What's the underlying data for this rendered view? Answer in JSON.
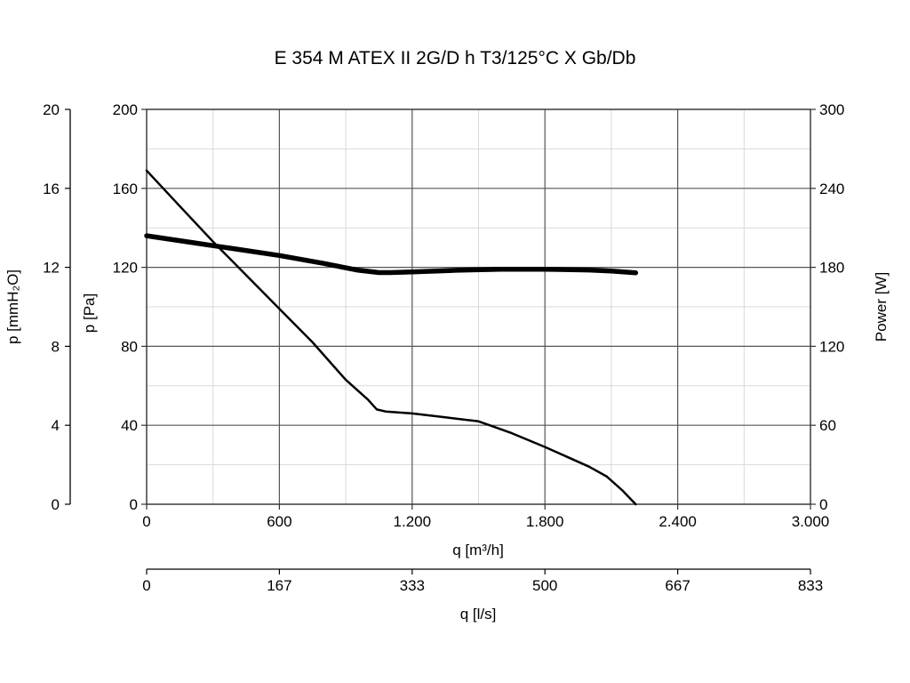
{
  "chart_data": {
    "type": "line",
    "title": "E 354 M ATEX II 2G/D h T3/125°C X Gb/Db",
    "x_axis": {
      "label": "q [m³/h]",
      "range": [
        0,
        3000
      ],
      "ticks": [
        0,
        600,
        1200,
        1800,
        2400,
        3000
      ],
      "tick_labels": [
        "0",
        "600",
        "1.200",
        "1.800",
        "2.400",
        "3.000"
      ]
    },
    "x2_axis": {
      "label": "q [l/s]",
      "tick_labels": [
        "0",
        "167",
        "333",
        "500",
        "667",
        "833"
      ]
    },
    "y_axis": {
      "label": "p [Pa]",
      "range": [
        0,
        200
      ],
      "ticks": [
        0,
        40,
        80,
        120,
        160,
        200
      ],
      "tick_labels": [
        "0",
        "40",
        "80",
        "120",
        "160",
        "200"
      ]
    },
    "y2_axis": {
      "label": "p [mmH₂O]",
      "tick_labels": [
        "0",
        "4",
        "8",
        "12",
        "16",
        "20"
      ]
    },
    "y3_axis": {
      "label": "Power [W]",
      "range": [
        0,
        300
      ],
      "ticks": [
        0,
        60,
        120,
        180,
        240,
        300
      ],
      "tick_labels": [
        "0",
        "60",
        "120",
        "180",
        "240",
        "300"
      ]
    },
    "grid": true,
    "series": [
      {
        "axis": "pressure",
        "x": [
          0,
          150,
          300,
          450,
          600,
          750,
          900,
          1000,
          1040,
          1080,
          1200,
          1350,
          1500,
          1550,
          1650,
          1800,
          1900,
          2000,
          2080,
          2150,
          2210
        ],
        "y": [
          169,
          151,
          133,
          116,
          99,
          82,
          63,
          53,
          48,
          47,
          46,
          44,
          42,
          40,
          36,
          29,
          24,
          19,
          14,
          7,
          0
        ]
      },
      {
        "axis": "power",
        "x": [
          0,
          200,
          400,
          600,
          800,
          950,
          1050,
          1100,
          1200,
          1400,
          1600,
          1800,
          2000,
          2100,
          2210
        ],
        "y": [
          204,
          199,
          194,
          189,
          183,
          178,
          176,
          176,
          176.5,
          177.8,
          178.5,
          178.5,
          178,
          177.2,
          175.8
        ]
      }
    ]
  }
}
